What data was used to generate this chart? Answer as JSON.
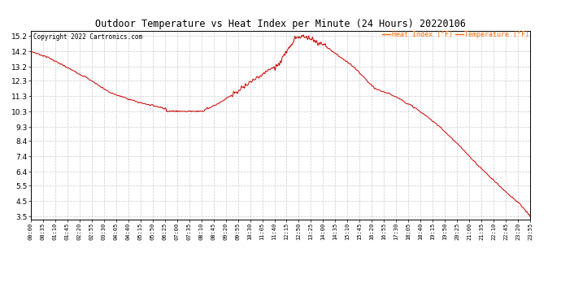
{
  "title": "Outdoor Temperature vs Heat Index per Minute (24 Hours) 20220106",
  "copyright_text": "Copyright 2022 Cartronics.com",
  "legend_heat_index": "Heat Index (°F)",
  "legend_temperature": "Temperature (°F)",
  "background_color": "#ffffff",
  "line_color": "#cc0000",
  "grid_color": "#cccccc",
  "title_color": "#000000",
  "copyright_color": "#000000",
  "legend_color": "#ff6600",
  "y_ticks": [
    3.5,
    4.5,
    5.5,
    6.4,
    7.4,
    8.4,
    9.3,
    10.3,
    11.3,
    12.3,
    13.2,
    14.2,
    15.2
  ],
  "ylim": [
    3.3,
    15.55
  ],
  "x_tick_labels": [
    "00:00",
    "00:35",
    "01:10",
    "01:45",
    "02:20",
    "02:55",
    "03:30",
    "04:05",
    "04:40",
    "05:15",
    "05:50",
    "06:25",
    "07:00",
    "07:35",
    "08:10",
    "08:45",
    "09:20",
    "09:55",
    "10:30",
    "11:05",
    "11:40",
    "12:15",
    "12:50",
    "13:25",
    "14:00",
    "14:35",
    "15:10",
    "15:45",
    "16:20",
    "16:55",
    "17:30",
    "18:05",
    "18:40",
    "19:15",
    "19:50",
    "20:25",
    "21:00",
    "21:35",
    "22:10",
    "22:45",
    "23:20",
    "23:55"
  ],
  "key_t": [
    0,
    50,
    100,
    160,
    230,
    310,
    390,
    460,
    490,
    530,
    590,
    650,
    710,
    745,
    760,
    780,
    800,
    830,
    870,
    930,
    990,
    1050,
    1110,
    1170,
    1230,
    1290,
    1350,
    1410,
    1440
  ],
  "key_v": [
    14.2,
    13.8,
    13.2,
    12.5,
    11.5,
    10.9,
    10.5,
    10.32,
    10.32,
    10.7,
    11.5,
    12.5,
    13.3,
    14.5,
    15.05,
    15.2,
    15.1,
    14.8,
    14.2,
    13.2,
    11.8,
    11.3,
    10.5,
    9.5,
    8.2,
    6.8,
    5.5,
    4.3,
    3.5
  ]
}
